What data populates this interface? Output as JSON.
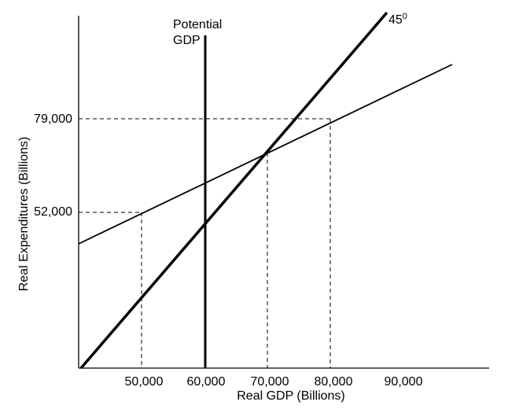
{
  "potential_gdp_label": [
    "Potential",
    "GDP"
  ],
  "line_label": {
    "base": "45",
    "superscript": "0"
  },
  "x_axis": {
    "title": "Real GDP (Billions)",
    "ticks": [
      "50,000",
      "60,000",
      "70,000",
      "80,000",
      "90,000"
    ]
  },
  "y_axis": {
    "title": "Real Expenditures (Billions)",
    "ticks": [
      "52,000",
      "79,000"
    ]
  }
}
